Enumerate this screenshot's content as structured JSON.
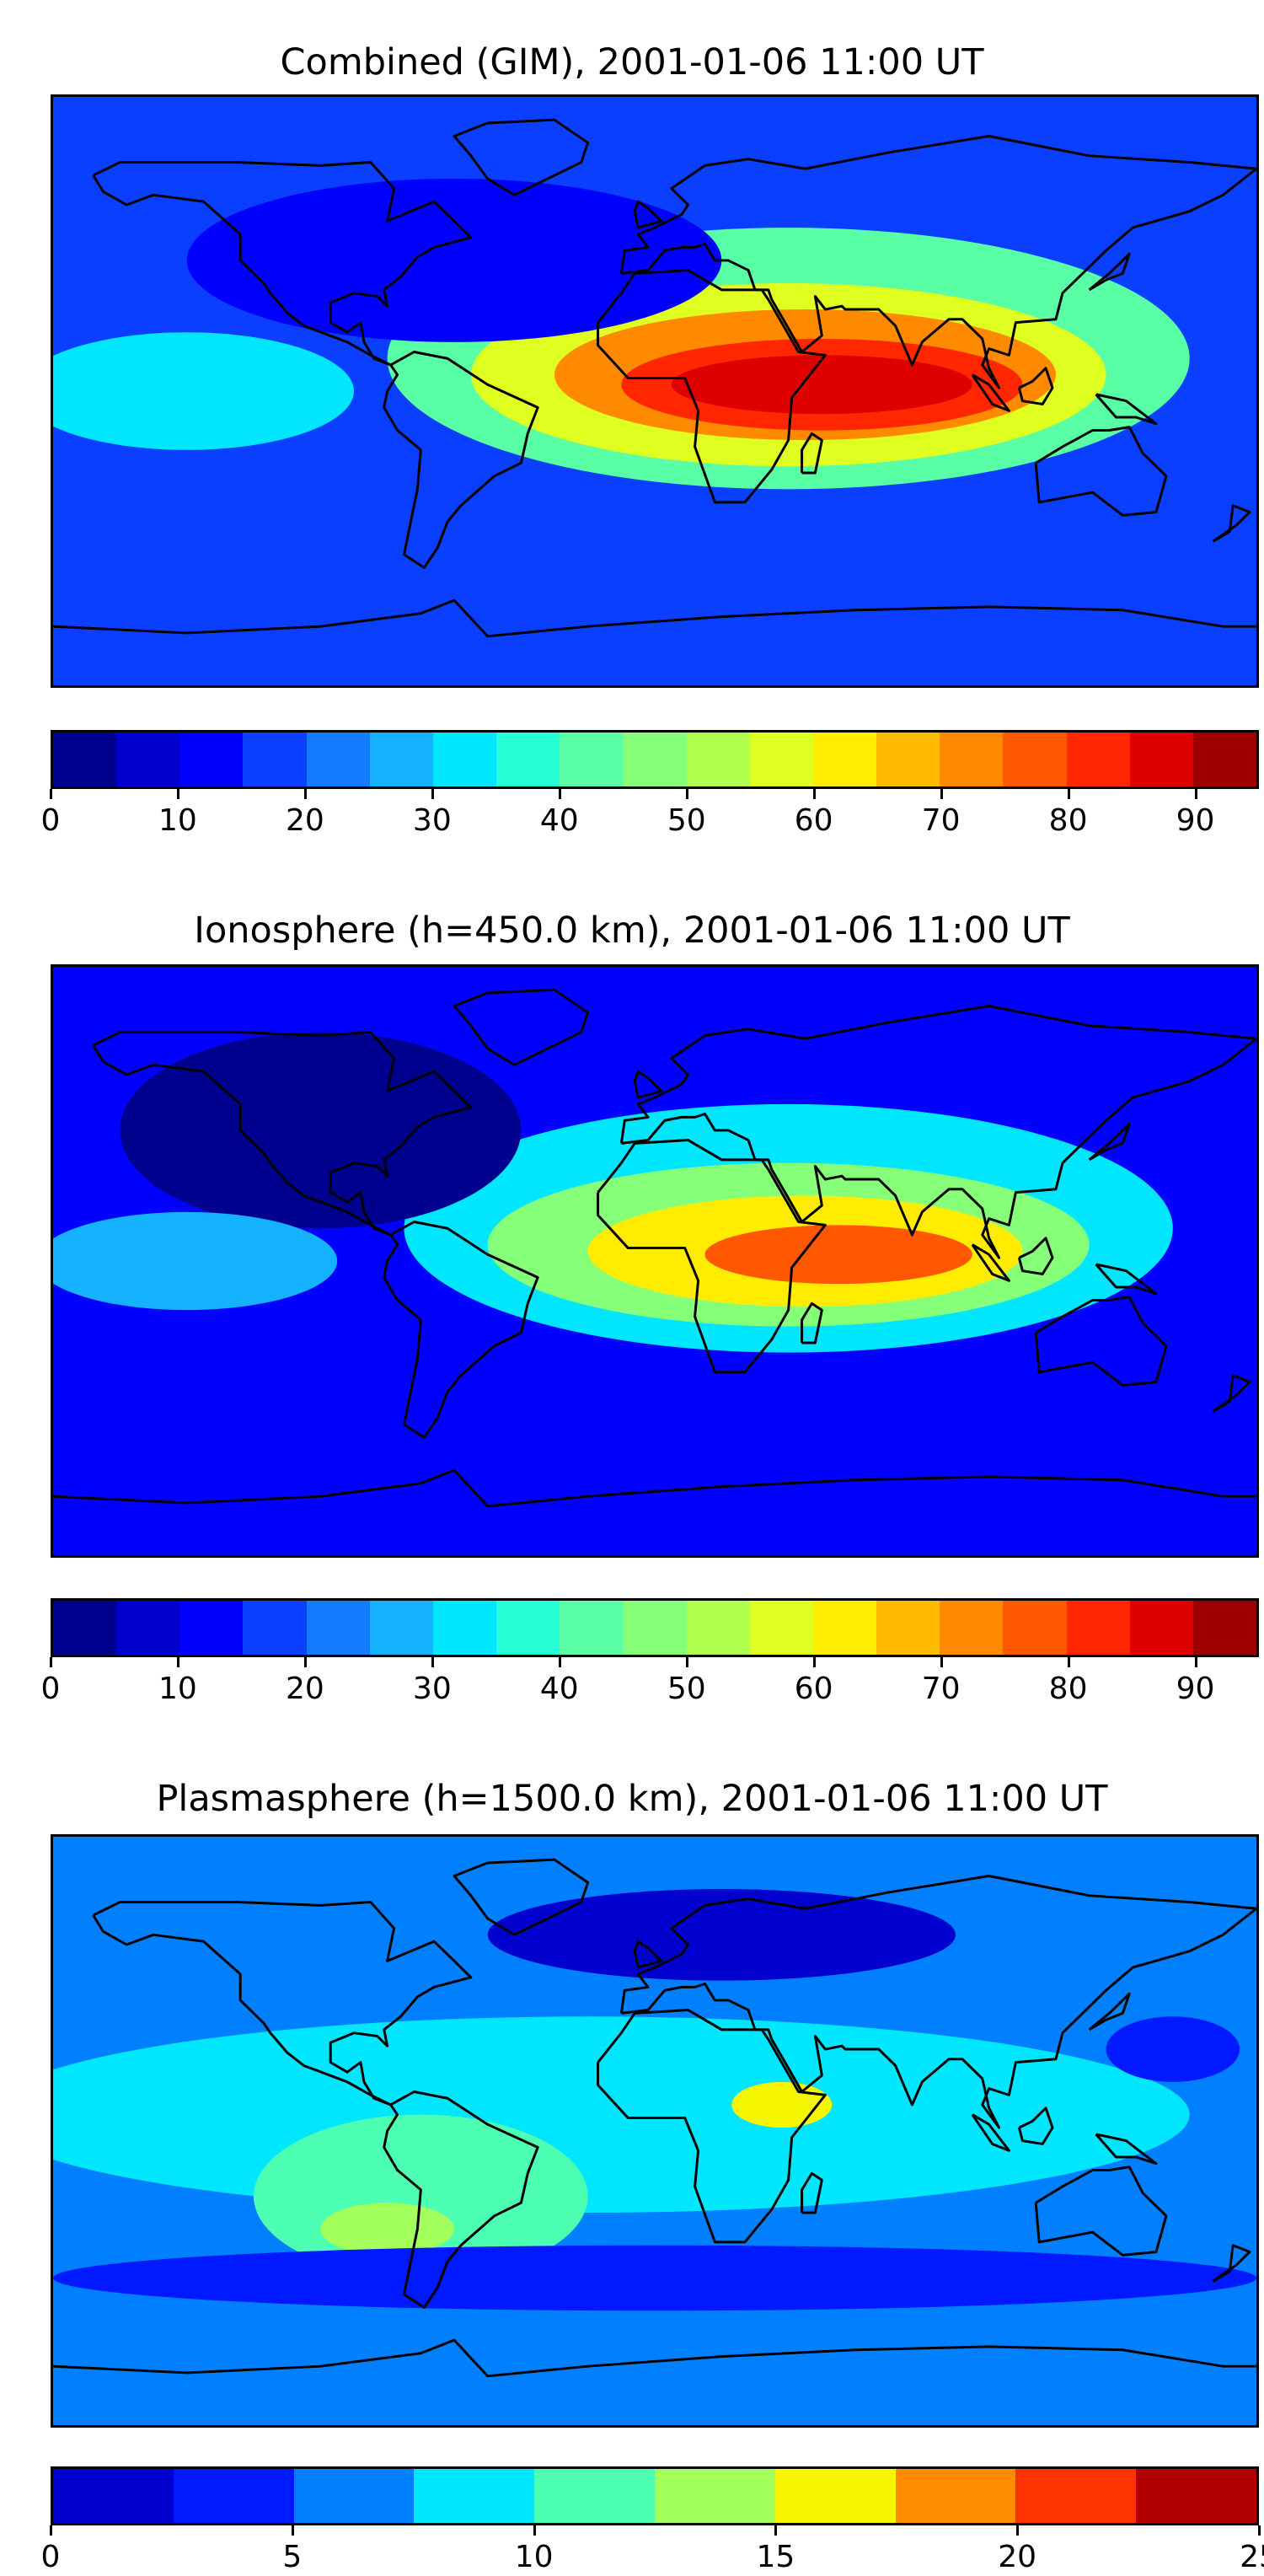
{
  "maps": [
    {
      "title": "Combined (GIM), 2001-01-06 11:00 UT",
      "colorbar": {
        "min": 0,
        "max": 95,
        "step": 5,
        "colors": [
          "#00008f",
          "#0000cf",
          "#0000ff",
          "#0a3fff",
          "#137bff",
          "#15b3ff",
          "#00e6ff",
          "#29ffd6",
          "#58ffa5",
          "#86ff79",
          "#b0ff4e",
          "#dfff21",
          "#ffec00",
          "#ffbb00",
          "#ff8a00",
          "#ff5800",
          "#ff2600",
          "#df0000",
          "#9e0000"
        ],
        "ticks": [
          0,
          10,
          20,
          30,
          40,
          50,
          60,
          70,
          80,
          90
        ],
        "tick_labels": [
          "0",
          "10",
          "20",
          "30",
          "40",
          "50",
          "60",
          "70",
          "80",
          "90"
        ]
      },
      "field": {
        "background": "#0a3fff",
        "blobs": [
          {
            "lon": 40,
            "lat": 10,
            "rx": 120,
            "ry": 40,
            "value": 40
          },
          {
            "lon": 40,
            "lat": 5,
            "rx": 95,
            "ry": 28,
            "value": 55
          },
          {
            "lon": 45,
            "lat": 5,
            "rx": 75,
            "ry": 20,
            "value": 70
          },
          {
            "lon": 50,
            "lat": 2,
            "rx": 60,
            "ry": 14,
            "value": 82
          },
          {
            "lon": 50,
            "lat": 2,
            "rx": 45,
            "ry": 9,
            "value": 88
          },
          {
            "lon": -140,
            "lat": 0,
            "rx": 50,
            "ry": 18,
            "value": 30
          },
          {
            "lon": -60,
            "lat": 40,
            "rx": 80,
            "ry": 25,
            "value": 12
          }
        ]
      }
    },
    {
      "title": "Ionosphere  (h=450.0 km), 2001-01-06 11:00 UT",
      "colorbar": {
        "min": 0,
        "max": 95,
        "step": 5,
        "colors": [
          "#00008f",
          "#0000cf",
          "#0000ff",
          "#0a3fff",
          "#137bff",
          "#15b3ff",
          "#00e6ff",
          "#29ffd6",
          "#58ffa5",
          "#86ff79",
          "#b0ff4e",
          "#dfff21",
          "#ffec00",
          "#ffbb00",
          "#ff8a00",
          "#ff5800",
          "#ff2600",
          "#df0000",
          "#9e0000"
        ],
        "ticks": [
          0,
          10,
          20,
          30,
          40,
          50,
          60,
          70,
          80,
          90
        ],
        "tick_labels": [
          "0",
          "10",
          "20",
          "30",
          "40",
          "50",
          "60",
          "70",
          "80",
          "90"
        ]
      },
      "field": {
        "background": "#0000ff",
        "blobs": [
          {
            "lon": 40,
            "lat": 10,
            "rx": 115,
            "ry": 38,
            "value": 32
          },
          {
            "lon": 40,
            "lat": 5,
            "rx": 90,
            "ry": 25,
            "value": 48
          },
          {
            "lon": 45,
            "lat": 3,
            "rx": 65,
            "ry": 17,
            "value": 62
          },
          {
            "lon": 55,
            "lat": 2,
            "rx": 40,
            "ry": 9,
            "value": 75
          },
          {
            "lon": -100,
            "lat": 40,
            "rx": 60,
            "ry": 30,
            "value": 4
          },
          {
            "lon": -140,
            "lat": 0,
            "rx": 45,
            "ry": 15,
            "value": 25
          }
        ]
      }
    },
    {
      "title": "Plasmasphere (h=1500.0 km), 2001-01-06 11:00 UT",
      "colorbar": {
        "min": 0,
        "max": 25,
        "step": 2.5,
        "colors": [
          "#0000cf",
          "#0019ff",
          "#0080ff",
          "#00e6ff",
          "#4dffb3",
          "#a3ff5b",
          "#f6f600",
          "#ff8c00",
          "#ff3300",
          "#b20000"
        ],
        "ticks": [
          0,
          5,
          10,
          15,
          20,
          25
        ],
        "tick_labels": [
          "0",
          "5",
          "10",
          "15",
          "20",
          "25"
        ]
      },
      "field": {
        "background": "#0080ff",
        "blobs": [
          {
            "lon": -20,
            "lat": 5,
            "rx": 180,
            "ry": 30,
            "value": 8
          },
          {
            "lon": -70,
            "lat": -20,
            "rx": 50,
            "ry": 25,
            "value": 11
          },
          {
            "lon": -80,
            "lat": -30,
            "rx": 20,
            "ry": 8,
            "value": 14
          },
          {
            "lon": 38,
            "lat": 8,
            "rx": 15,
            "ry": 7,
            "value": 15
          },
          {
            "lon": 20,
            "lat": 60,
            "rx": 70,
            "ry": 14,
            "value": 1
          },
          {
            "lon": 0,
            "lat": -45,
            "rx": 180,
            "ry": 10,
            "value": 3
          },
          {
            "lon": 155,
            "lat": 25,
            "rx": 20,
            "ry": 10,
            "value": 4
          }
        ]
      }
    }
  ],
  "coastline_color": "#000000"
}
